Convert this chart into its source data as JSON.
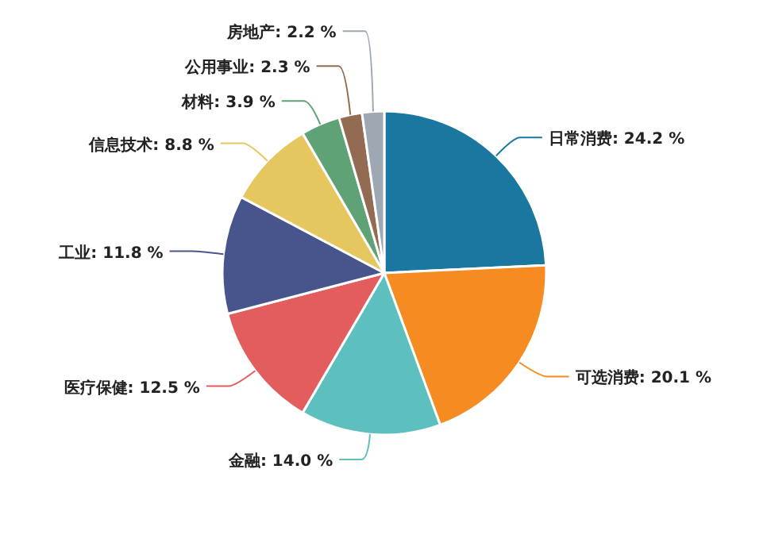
{
  "chart_data": {
    "type": "pie",
    "categories": [
      "日常消费",
      "可选消费",
      "金融",
      "医疗保健",
      "工业",
      "信息技术",
      "材料",
      "公用事业",
      "房地产"
    ],
    "values": [
      24.2,
      20.1,
      14.0,
      12.5,
      11.8,
      8.8,
      3.9,
      2.3,
      2.2
    ],
    "value_labels": [
      "24.2 %",
      "20.1 %",
      "14.0 %",
      "12.5 %",
      "11.8 %",
      "8.8 %",
      "3.9 %",
      "2.3 %",
      "2.2 %"
    ],
    "colors": [
      "#1a77a0",
      "#f68b22",
      "#5dbfbe",
      "#e35d5e",
      "#48558c",
      "#e6c65e",
      "#5fa276",
      "#926b52",
      "#9ea8b3"
    ]
  }
}
